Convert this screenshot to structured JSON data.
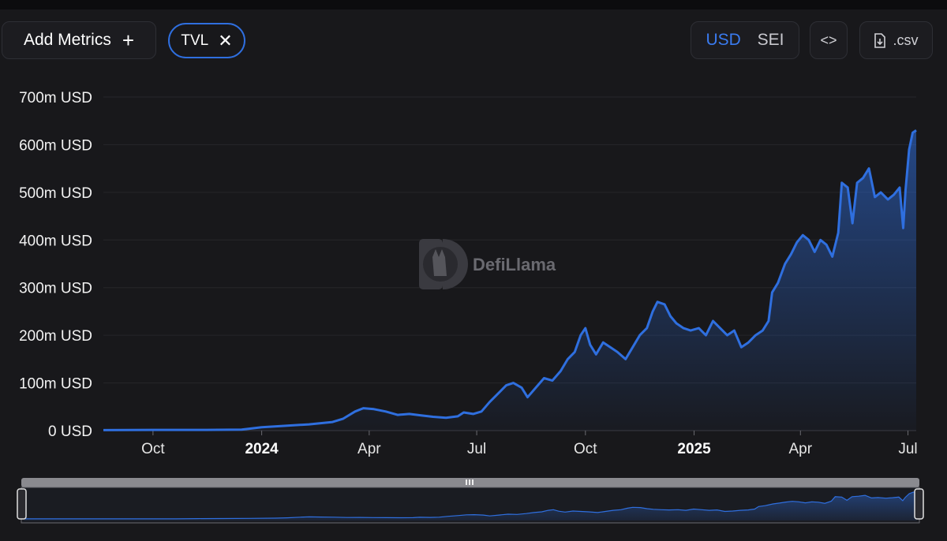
{
  "toolbar": {
    "add_metrics_label": "Add Metrics",
    "add_icon": "plus-icon",
    "metric_chip_label": "TVL",
    "remove_icon": "close-icon",
    "currency_options": [
      "USD",
      "SEI"
    ],
    "currency_selected": "USD",
    "embed_icon": "code-brackets-icon",
    "csv_label": ".csv",
    "csv_icon": "download-file-icon"
  },
  "watermark": {
    "text": "DefiLlama",
    "icon": "llama-logo-icon"
  },
  "colors": {
    "accent": "#2f6fdf",
    "line": "#2f6fdf",
    "background": "#18181b",
    "grid": "#26262b"
  },
  "chart_data": {
    "type": "area",
    "title": "",
    "xlabel": "",
    "ylabel": "",
    "y_unit": "USD",
    "ylim": [
      0,
      700
    ],
    "y_ticks": [
      0,
      100,
      200,
      300,
      400,
      500,
      600,
      700
    ],
    "y_tick_labels": [
      "0 USD",
      "100m USD",
      "200m USD",
      "300m USD",
      "400m USD",
      "500m USD",
      "600m USD",
      "700m USD"
    ],
    "xlim": [
      "2023-08-20",
      "2025-07-08"
    ],
    "x_ticks": [
      {
        "date": "2023-10-01",
        "label": "Oct",
        "year": false
      },
      {
        "date": "2024-01-01",
        "label": "2024",
        "year": true
      },
      {
        "date": "2024-04-01",
        "label": "Apr",
        "year": false
      },
      {
        "date": "2024-07-01",
        "label": "Jul",
        "year": false
      },
      {
        "date": "2024-10-01",
        "label": "Oct",
        "year": false
      },
      {
        "date": "2025-01-01",
        "label": "2025",
        "year": true
      },
      {
        "date": "2025-04-01",
        "label": "Apr",
        "year": false
      },
      {
        "date": "2025-07-01",
        "label": "Jul",
        "year": false
      }
    ],
    "grid": true,
    "legend": "none",
    "series": [
      {
        "values": [
          [
            "2023-08-20",
            1
          ],
          [
            "2023-10-01",
            1.5
          ],
          [
            "2023-11-15",
            1.5
          ],
          [
            "2023-12-15",
            2
          ],
          [
            "2024-01-01",
            7
          ],
          [
            "2024-01-20",
            10
          ],
          [
            "2024-02-10",
            13
          ],
          [
            "2024-03-01",
            18
          ],
          [
            "2024-03-10",
            25
          ],
          [
            "2024-03-20",
            40
          ],
          [
            "2024-03-27",
            47
          ],
          [
            "2024-04-05",
            45
          ],
          [
            "2024-04-15",
            40
          ],
          [
            "2024-04-25",
            33
          ],
          [
            "2024-05-05",
            35
          ],
          [
            "2024-05-15",
            32
          ],
          [
            "2024-05-25",
            29
          ],
          [
            "2024-06-05",
            27
          ],
          [
            "2024-06-15",
            30
          ],
          [
            "2024-06-20",
            38
          ],
          [
            "2024-06-28",
            35
          ],
          [
            "2024-07-05",
            40
          ],
          [
            "2024-07-12",
            60
          ],
          [
            "2024-07-20",
            80
          ],
          [
            "2024-07-26",
            95
          ],
          [
            "2024-08-01",
            100
          ],
          [
            "2024-08-08",
            90
          ],
          [
            "2024-08-13",
            70
          ],
          [
            "2024-08-20",
            90
          ],
          [
            "2024-08-27",
            110
          ],
          [
            "2024-09-03",
            105
          ],
          [
            "2024-09-10",
            125
          ],
          [
            "2024-09-16",
            150
          ],
          [
            "2024-09-22",
            165
          ],
          [
            "2024-09-27",
            200
          ],
          [
            "2024-10-01",
            215
          ],
          [
            "2024-10-05",
            180
          ],
          [
            "2024-10-10",
            160
          ],
          [
            "2024-10-16",
            185
          ],
          [
            "2024-10-22",
            175
          ],
          [
            "2024-10-28",
            165
          ],
          [
            "2024-11-04",
            150
          ],
          [
            "2024-11-10",
            175
          ],
          [
            "2024-11-16",
            200
          ],
          [
            "2024-11-22",
            215
          ],
          [
            "2024-11-27",
            250
          ],
          [
            "2024-12-01",
            270
          ],
          [
            "2024-12-07",
            265
          ],
          [
            "2024-12-12",
            240
          ],
          [
            "2024-12-17",
            225
          ],
          [
            "2024-12-23",
            215
          ],
          [
            "2024-12-29",
            210
          ],
          [
            "2025-01-05",
            215
          ],
          [
            "2025-01-11",
            200
          ],
          [
            "2025-01-17",
            230
          ],
          [
            "2025-01-23",
            215
          ],
          [
            "2025-01-29",
            200
          ],
          [
            "2025-02-04",
            210
          ],
          [
            "2025-02-10",
            175
          ],
          [
            "2025-02-16",
            185
          ],
          [
            "2025-02-22",
            200
          ],
          [
            "2025-02-28",
            210
          ],
          [
            "2025-03-05",
            230
          ],
          [
            "2025-03-08",
            290
          ],
          [
            "2025-03-13",
            310
          ],
          [
            "2025-03-19",
            350
          ],
          [
            "2025-03-24",
            370
          ],
          [
            "2025-03-29",
            395
          ],
          [
            "2025-04-03",
            410
          ],
          [
            "2025-04-08",
            400
          ],
          [
            "2025-04-13",
            375
          ],
          [
            "2025-04-18",
            400
          ],
          [
            "2025-04-23",
            390
          ],
          [
            "2025-04-28",
            365
          ],
          [
            "2025-05-03",
            415
          ],
          [
            "2025-05-06",
            520
          ],
          [
            "2025-05-11",
            510
          ],
          [
            "2025-05-15",
            435
          ],
          [
            "2025-05-19",
            520
          ],
          [
            "2025-05-24",
            530
          ],
          [
            "2025-05-29",
            550
          ],
          [
            "2025-06-03",
            490
          ],
          [
            "2025-06-08",
            500
          ],
          [
            "2025-06-14",
            485
          ],
          [
            "2025-06-19",
            495
          ],
          [
            "2025-06-24",
            510
          ],
          [
            "2025-06-27",
            425
          ],
          [
            "2025-06-29",
            505
          ],
          [
            "2025-07-02",
            590
          ],
          [
            "2025-07-05",
            625
          ],
          [
            "2025-07-08",
            630
          ]
        ]
      }
    ]
  }
}
